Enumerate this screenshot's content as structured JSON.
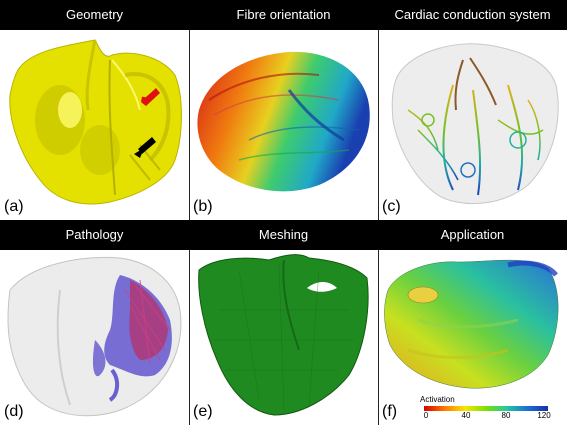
{
  "row1": {
    "titles": [
      "Geometry",
      "Fibre orientation",
      "Cardiac conduction system"
    ]
  },
  "row2": {
    "titles": [
      "Pathology",
      "Meshing",
      "Application"
    ]
  },
  "panel_labels": [
    "(a)",
    "(b)",
    "(c)",
    "(d)",
    "(e)",
    "(f)"
  ],
  "legend": {
    "title": "Activation",
    "ticks": [
      "0",
      "40",
      "80",
      "120"
    ]
  },
  "colors": {
    "header_bg": "#000000",
    "geometry": "#e6e600",
    "mesh": "#1f8a1f",
    "scar": "#6a5fd0",
    "arrow_red": "#e01010",
    "arrow_black": "#000000"
  }
}
